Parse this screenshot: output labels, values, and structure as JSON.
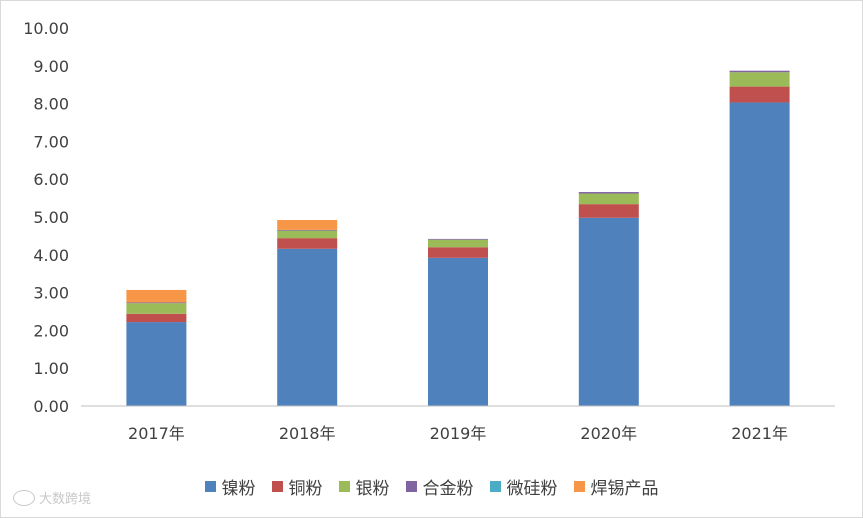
{
  "chart_data": {
    "type": "bar",
    "stacked": true,
    "categories": [
      "2017年",
      "2018年",
      "2019年",
      "2020年",
      "2021年"
    ],
    "series": [
      {
        "name": "镍粉",
        "color": "#4F81BD",
        "values": [
          2.22,
          4.16,
          3.92,
          4.98,
          8.03
        ]
      },
      {
        "name": "铜粉",
        "color": "#C0504D",
        "values": [
          0.22,
          0.28,
          0.28,
          0.36,
          0.42
        ]
      },
      {
        "name": "银粉",
        "color": "#9BBB59",
        "values": [
          0.28,
          0.2,
          0.2,
          0.28,
          0.38
        ]
      },
      {
        "name": "合金粉",
        "color": "#8064A2",
        "values": [
          0.02,
          0.02,
          0.02,
          0.04,
          0.04
        ]
      },
      {
        "name": "微硅粉",
        "color": "#4BACC6",
        "values": [
          0.0,
          0.0,
          0.0,
          0.0,
          0.0
        ]
      },
      {
        "name": "焊锡产品",
        "color": "#F79646",
        "values": [
          0.33,
          0.26,
          0.0,
          0.0,
          0.0
        ]
      }
    ],
    "ylim": [
      0,
      10
    ],
    "yticks": [
      "0.00",
      "1.00",
      "2.00",
      "3.00",
      "4.00",
      "5.00",
      "6.00",
      "7.00",
      "8.00",
      "9.00",
      "10.00"
    ],
    "grid": false,
    "legend_position": "bottom"
  },
  "watermark": {
    "text": "大数跨境"
  }
}
